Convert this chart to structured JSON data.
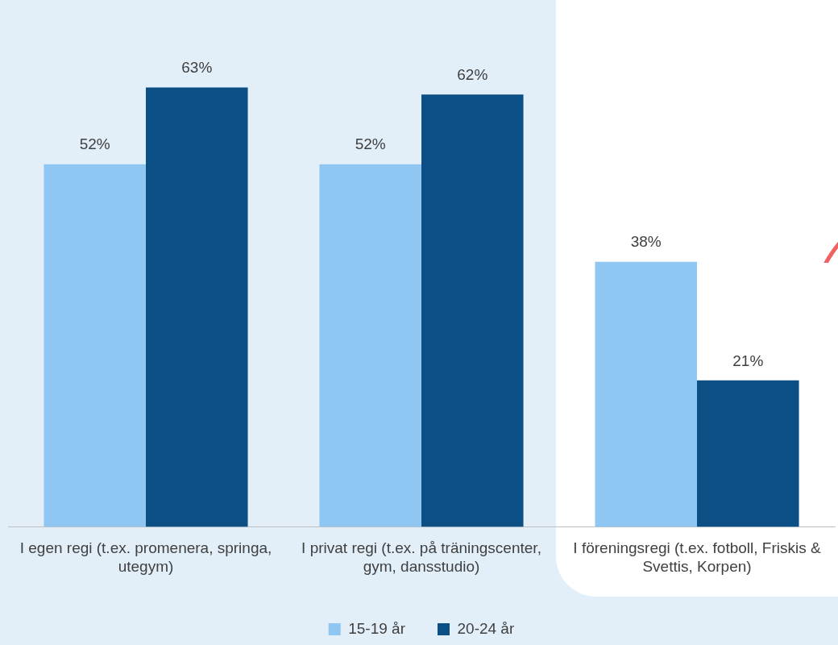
{
  "chart_data": {
    "type": "bar",
    "categories": [
      "I egen regi (t.ex. promenera, springa, utegym)",
      "I privat regi (t.ex. på träningscenter, gym, dansstudio)",
      "I föreningsregi (t.ex. fotboll, Friskis & Svettis, Korpen)"
    ],
    "series": [
      {
        "name": "15-19 år",
        "color": "#8fc6f2",
        "values": [
          52,
          52,
          38
        ],
        "value_labels": [
          "52%",
          "52%",
          "38%"
        ]
      },
      {
        "name": "20-24 år",
        "color": "#0b4f85",
        "values": [
          63,
          62,
          21
        ],
        "value_labels": [
          "63%",
          "62%",
          "21%"
        ]
      }
    ],
    "legend": "bottom"
  }
}
